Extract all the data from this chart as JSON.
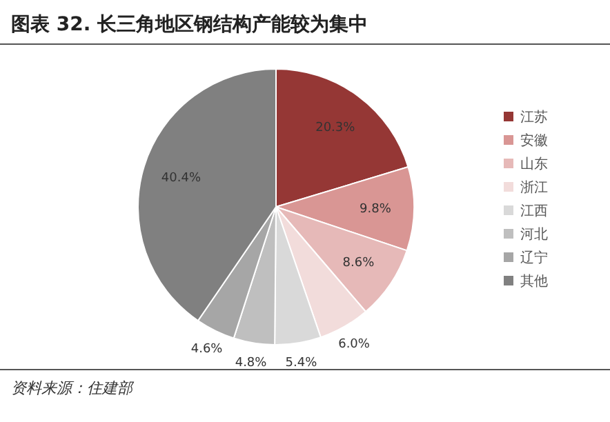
{
  "chart_data": {
    "type": "pie",
    "title": "图表 32. 长三角地区钢结构产能较为集中",
    "categories": [
      "江苏",
      "安徽",
      "山东",
      "浙江",
      "江西",
      "河北",
      "辽宁",
      "其他"
    ],
    "values": [
      20.3,
      9.8,
      8.6,
      6.0,
      5.4,
      4.8,
      4.6,
      40.4
    ],
    "value_labels": [
      "20.3%",
      "9.8%",
      "8.6%",
      "6.0%",
      "5.4%",
      "4.8%",
      "4.6%",
      "40.4%"
    ],
    "colors": [
      "#953735",
      "#d99694",
      "#e6b9b8",
      "#f2dcdb",
      "#d9d9d9",
      "#bfbfbf",
      "#a6a6a6",
      "#808080"
    ],
    "legend": "right",
    "annotations": [
      "资料来源：住建部"
    ]
  }
}
